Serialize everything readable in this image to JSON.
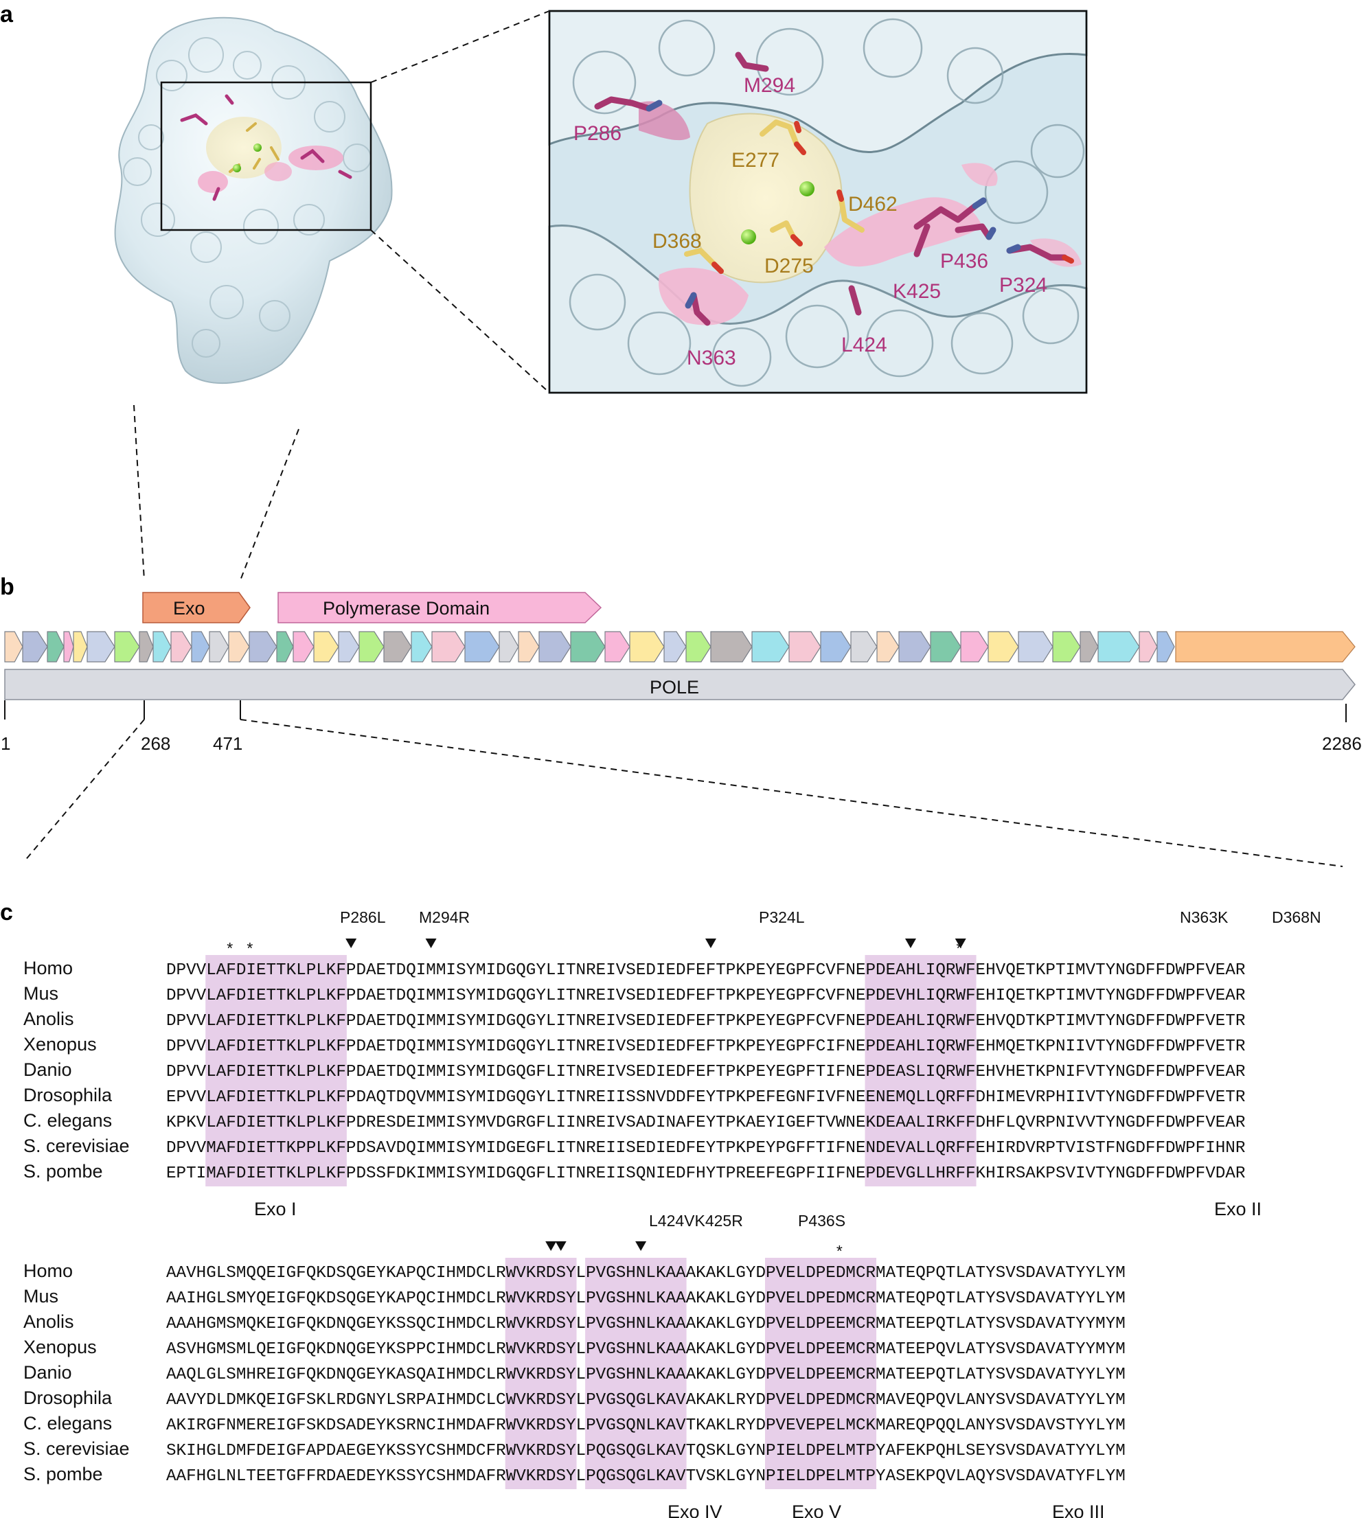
{
  "panels": {
    "a": "a",
    "b": "b",
    "c": "c"
  },
  "structure": {
    "pink_residues": [
      "P286",
      "M294",
      "P436",
      "K425",
      "P324",
      "N363",
      "L424"
    ],
    "gold_residues": [
      "E277",
      "D462",
      "D368",
      "D275"
    ],
    "colors": {
      "surface": "#dbe9ef",
      "pink": "#b0337a",
      "gold": "#a77c1c",
      "metal": "#7fd321"
    }
  },
  "gene_map": {
    "gene": "POLE",
    "domains": [
      {
        "label": "Exo",
        "color": "#f4a07a"
      },
      {
        "label": "Polymerase Domain",
        "color": "#f9b7d9"
      }
    ],
    "positions": [
      "1",
      "268",
      "471",
      "2286"
    ]
  },
  "alignment": {
    "species": [
      "Homo",
      "Mus",
      "Anolis",
      "Xenopus",
      "Danio",
      "Drosophila",
      "C. elegans",
      "S. cerevisiae",
      "S. pombe"
    ],
    "block1": {
      "sequences": [
        "DPVVLAFDIETTKLPLKFPDAETDQIMMISYMIDGQGYLITNREIVSEDIEDFEFTPKPEYEGPFCVFNEPDEAHLIQRWFEHVQETKPTIMVTYNGDFFDWPFVEAR",
        "DPVVLAFDIETTKLPLKFPDAETDQIMMISYMIDGQGYLITNREIVSEDIEDFEFTPKPEYEGPFCVFNEPDEVHLIQRWFEHIQETKPTIMVTYNGDFFDWPFVEAR",
        "DPVVLAFDIETTKLPLKFPDAETDQIMMISYMIDGQGYLITNREIVSEDIEDFEFTPKPEYEGPFCVFNEPDEAHLIQRWFEHVQDTKPTIMVTYNGDFFDWPFVETR",
        "DPVVLAFDIETTKLPLKFPDAETDQIMMISYMIDGQGYLITNREIVSEDIEDFEFTPKPEYEGPFCIFNEPDEAHLIQRWFEHMQETKPNIIVTYNGDFFDWPFVETR",
        "DPVVLAFDIETTKLPLKFPDAETDQIMMISYMIDGQGFLITNREIVSEDIEDFEFTPKPEYEGPFTIFNEPDEASLIQRWFEHVHETKPNIFVTYNGDFFDWPFVEAR",
        "EPVVLAFDIETTKLPLKFPDAQTDQVMMISYMIDGQGYLITNREIISSNVDDFEYTPKPEFEGNFIVFNEENEMQLLQRFFDHIMEVRPHIIVTYNGDFFDWPFVETR",
        "KPKVLAFDIETTKLPLKFPDRESDEIMMISYMVDGRGFLIINREIVSADINAFEYTPKAEYIGEFTVWNEKDEAALIRKFFDHFLQVRPNIVVTYNGDFFDWPFVEAR",
        "DPVVMAFDIETTKPPLKFPDSAVDQIMMISYMIDGEGFLITNREIISEDIEDFEYTPKPEYPGFFTIFNENDEVALLQRFFEHIRDVRPTVISTFNGDFFDWPFIHNR",
        "EPTIMAFDIETTKLPLKFPDSSFDKIMMISYMIDGQGFLITNREIISQNIEDFHYTPREEFEGPFIIFNEPDEVGLLHRFFKHIRSAKPSVIVTYNGDFFDWPFVDAR"
      ],
      "mutations": [
        "P286L",
        "M294R",
        "P324L",
        "N363K",
        "D368N"
      ],
      "motifs": [
        "Exo I",
        "Exo II"
      ]
    },
    "block2": {
      "sequences": [
        "AAVHGLSMQQEIGFQKDSQGEYKAPQCIHMDCLRWVKRDSYLPVGSHNLKAAAKAKLGYDPVELDPEDMCRMATEQPQTLATYSVSDAVATYYLYM",
        "AAIHGLSMYQEIGFQKDSQGEYKAPQCIHMDCLRWVKRDSYLPVGSHNLKAAAKAKLGYDPVELDPEDMCRMATEQPQTLATYSVSDAVATYYLYM",
        "AAAHGMSMQKEIGFQKDNQGEYKSSQCIHMDCLRWVKRDSYLPVGSHNLKAAAKAKLGYDPVELDPEEMCRMATEEPQTLATYSVSDAVATYYMYM",
        "ASVHGMSMLQEIGFQKDNQGEYKSPPCIHMDCLRWVKRDSYLPVGSHNLKAAAKAKLGYDPVELDPEEMCRMATEEPQVLATYSVSDAVATYYMYM",
        "AAQLGLSMHREIGFQKDNQGEYKASQAIHMDCLRWVKRDSYLPVGSHNLKAAAKAKLGYDPVELDPEEMCRMATEEPQTLATYSVSDAVATYYLYM",
        "AAVYDLDMKQEIGFSKLRDGNYLSRPAIHMDCLCWVKRDSYLPVGSQGLKAVAKAKLRYDPVELDPEDMCRMAVEQPQVLANYSVSDAVATYYLYM",
        "AKIRGFNMEREIGFSKDSADEYKSRNCIHMDAFRWVKRDSYLPVGSQNLKAVTKAKLRYDPVEVEPELMCKMAREQPQQLANYSVSDAVSTYYLYM",
        "SKIHGLDMFDEIGFAPDAEGEYKSSYCSHMDCFRWVKRDSYLPQGSQGLKAVTQSKLGYNPIELDPELMTPYAFEKPQHLSEYSVSDAVATYYLYM",
        "AAFHGLNLTEETGFFRDAEDEYKSSYCSHMDAFRWVKRDSYLPQGSQGLKAVTVSKLGYNPIELDPELMTPYASEKPQVLAQYSVSDAVATYFLYM"
      ],
      "mutations": [
        "L424V",
        "K425R",
        "P436S"
      ],
      "motifs": [
        "Exo IV",
        "Exo V",
        "Exo III"
      ]
    },
    "highlight_color": "#e7cfe9"
  }
}
